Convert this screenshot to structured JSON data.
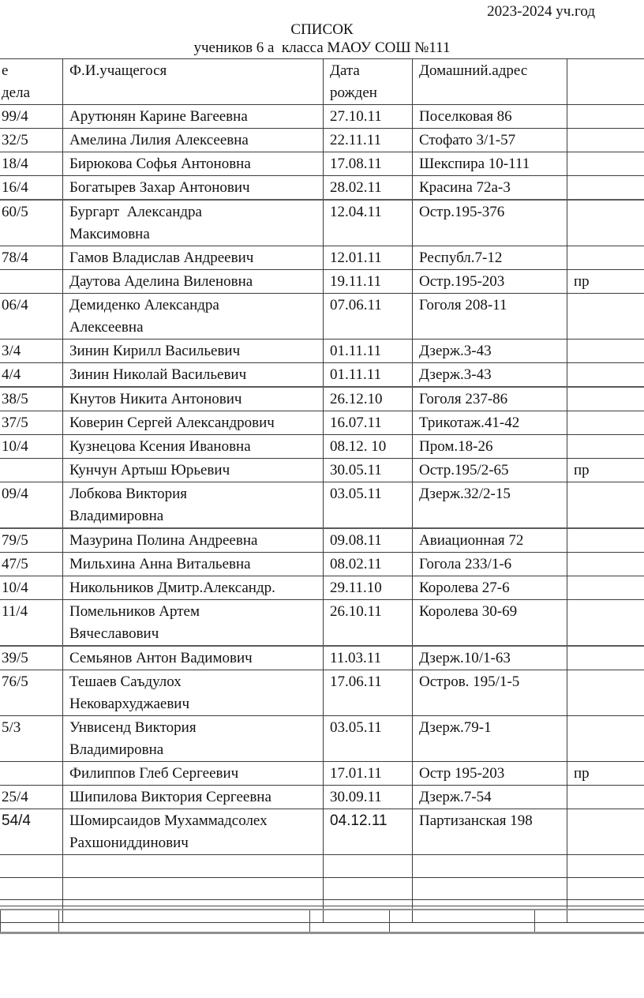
{
  "header": {
    "school_year": "2023-2024 уч.год",
    "title": "СПИСОК",
    "subtitle": "учеников 6 а  класса МАОУ СОШ №111"
  },
  "table": {
    "headers": {
      "file_no": "е\nдела",
      "name": "Ф.И.учащегося",
      "birth": "Дата\nрожден",
      "address": "Домашний.адрес",
      "extra": ""
    },
    "rows": [
      {
        "num": "99/4",
        "name": "Арутюнян Карине Вагеевна",
        "date": "27.10.11",
        "addr": "Поселковая 86",
        "mark": ""
      },
      {
        "num": "32/5",
        "name": "Амелина Лилия Алексеевна",
        "date": "22.11.11",
        "addr": "Стофато 3/1-57",
        "mark": ""
      },
      {
        "num": "18/4",
        "name": "Бирюкова Софья Антоновна",
        "date": "17.08.11",
        "addr": "Шекспира 10-111",
        "mark": ""
      },
      {
        "num": "16/4",
        "name": "Богатырев Захар Антонович",
        "date": "28.02.11",
        "addr": "Красина 72а-3",
        "mark": ""
      },
      {
        "num": "60/5",
        "name": "Бургарт  Александра\nМаксимовна",
        "date": "12.04.11",
        "addr": "Остр.195-376",
        "mark": ""
      },
      {
        "num": "78/4",
        "name": "Гамов Владислав Андреевич",
        "date": "12.01.11",
        "addr": "Республ.7-12",
        "mark": ""
      },
      {
        "num": "",
        "name": "Даутова Аделина Виленовна",
        "date": "19.11.11",
        "addr": "Остр.195-203",
        "mark": "пр"
      },
      {
        "num": "06/4",
        "name": "Демиденко Александра\nАлексеевна",
        "date": "07.06.11",
        "addr": "Гоголя 208-11",
        "mark": ""
      },
      {
        "num": "3/4",
        "name": "Зинин Кирилл Васильевич",
        "date": "01.11.11",
        "addr": "Дзерж.3-43",
        "mark": ""
      },
      {
        "num": "4/4",
        "name": "Зинин Николай Васильевич",
        "date": "01.11.11",
        "addr": "Дзерж.3-43",
        "mark": ""
      },
      {
        "num": "38/5",
        "name": "Кнутов Никита Антонович",
        "date": "26.12.10",
        "addr": "Гоголя 237-86",
        "mark": ""
      },
      {
        "num": "37/5",
        "name": "Коверин Сергей Александрович",
        "date": "16.07.11",
        "addr": "Трикотаж.41-42",
        "mark": ""
      },
      {
        "num": "10/4",
        "name": "Кузнецова Ксения Ивановна",
        "date": "08.12. 10",
        "addr": "Пром.18-26",
        "mark": ""
      },
      {
        "num": "",
        "name": "Кунчун Артыш Юрьевич",
        "date": "30.05.11",
        "addr": "Остр.195/2-65",
        "mark": "пр"
      },
      {
        "num": "09/4",
        "name": "Лобкова Виктория\nВладимировна",
        "date": "03.05.11",
        "addr": "Дзерж.32/2-15",
        "mark": ""
      },
      {
        "num": "79/5",
        "name": "Мазурина Полина Андреевна",
        "date": "09.08.11",
        "addr": "Авиационная 72",
        "mark": ""
      },
      {
        "num": "47/5",
        "name": "Мильхина Анна Витальевна",
        "date": "08.02.11",
        "addr": "Гогола 233/1-6",
        "mark": ""
      },
      {
        "num": "10/4",
        "name": "Никольников Дмитр.Александр.",
        "date": "29.11.10",
        "addr": "Королева 27-6",
        "mark": ""
      },
      {
        "num": "11/4",
        "name": "Помельников Артем\nВячеславович",
        "date": "26.10.11",
        "addr": "Королева 30-69",
        "mark": ""
      },
      {
        "num": "39/5",
        "name": "Семьянов Антон Вадимович",
        "date": "11.03.11",
        "addr": "Дзерж.10/1-63",
        "mark": ""
      },
      {
        "num": "76/5",
        "name": "Тешаев Саъдулох\nНековархуджаевич",
        "date": "17.06.11",
        "addr": "Остров. 195/1-5",
        "mark": ""
      },
      {
        "num": "5/3",
        "name": "Унвисенд Виктория\nВладимировна",
        "date": "03.05.11",
        "addr": "Дзерж.79-1",
        "mark": ""
      },
      {
        "num": "",
        "name": "Филиппов Глеб Сергеевич",
        "date": "17.01.11",
        "addr": "Остр 195-203",
        "mark": "пр"
      },
      {
        "num": "25/4",
        "name": "Шипилова Виктория Сергеевна",
        "date": "30.09.11",
        "addr": "Дзерж.7-54",
        "mark": ""
      },
      {
        "num": "54/4",
        "name": "Шомирсаидов Мухаммадсолех\nРахшониддинович",
        "date": "04.12.11",
        "addr": "Партизанская 198",
        "mark": "",
        "alt_font": true
      },
      {
        "num": "",
        "name": "",
        "date": "",
        "addr": "",
        "mark": ""
      },
      {
        "num": "",
        "name": "",
        "date": "",
        "addr": "",
        "mark": ""
      },
      {
        "num": "",
        "name": "",
        "date": "",
        "addr": "",
        "mark": ""
      }
    ]
  }
}
